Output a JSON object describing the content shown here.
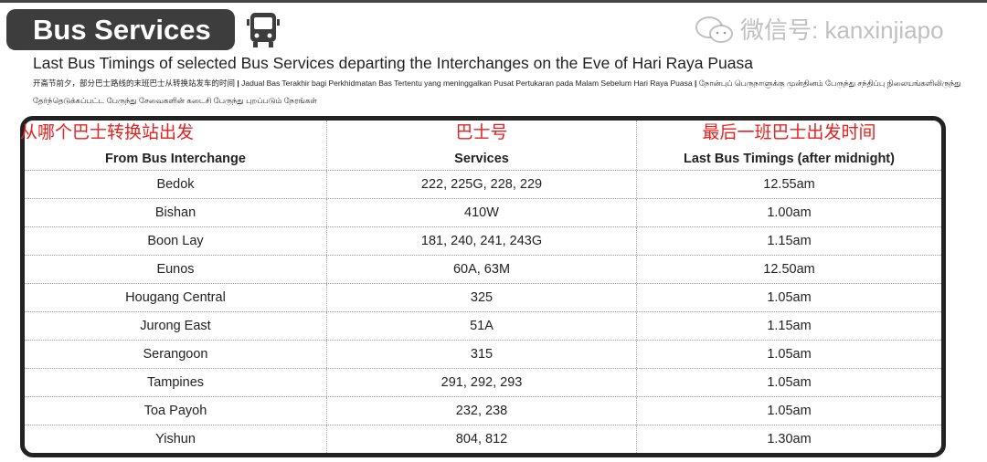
{
  "header": {
    "title": "Bus Services",
    "icon": "bus-icon",
    "subtitle": "Last Bus Timings of selected Bus Services departing the Interchanges on the Eve of Hari Raya Puasa",
    "chinese": "开斋节前夕，部分巴士路线的末班巴士从转换站发车的时间",
    "malay": "Jadual Bas Terakhir bagi Perkhidmatan Bas Tertentu yang meninggalkan Pusat Pertukaran pada Malam Sebelum Hari Raya Puasa",
    "tamil_1": "நோன்புப் பெருநாளுக்கு முன்தினம் பேருந்து சந்திப்பு நிலையங்களிலிருந்து",
    "tamil_2": "தேர்ந்தெடுக்கப்பட்ட பேருந்து சேவைகளின் கடைசி பேருந்து புறப்படும் நேரங்கள்",
    "separator": "|"
  },
  "table": {
    "columns": [
      {
        "label": "From Bus Interchange",
        "annotation": "从哪个巴士转换站出发"
      },
      {
        "label": "Services",
        "annotation": "巴士号"
      },
      {
        "label": "Last Bus Timings (after midnight)",
        "annotation": "最后一班巴士出发时间"
      }
    ],
    "rows": [
      [
        "Bedok",
        "222, 225G, 228, 229",
        "12.55am"
      ],
      [
        "Bishan",
        "410W",
        "1.00am"
      ],
      [
        "Boon Lay",
        "181, 240, 241, 243G",
        "1.15am"
      ],
      [
        "Eunos",
        "60A, 63M",
        "12.50am"
      ],
      [
        "Hougang Central",
        "325",
        "1.05am"
      ],
      [
        "Jurong East",
        "51A",
        "1.15am"
      ],
      [
        "Serangoon",
        "315",
        "1.05am"
      ],
      [
        "Tampines",
        "291, 292, 293",
        "1.05am"
      ],
      [
        "Toa Payoh",
        "232, 238",
        "1.05am"
      ],
      [
        "Yishun",
        "804, 812",
        "1.30am"
      ]
    ]
  },
  "watermark": {
    "text": "微信号: kanxinjiapo",
    "icon": "wechat-icon"
  }
}
